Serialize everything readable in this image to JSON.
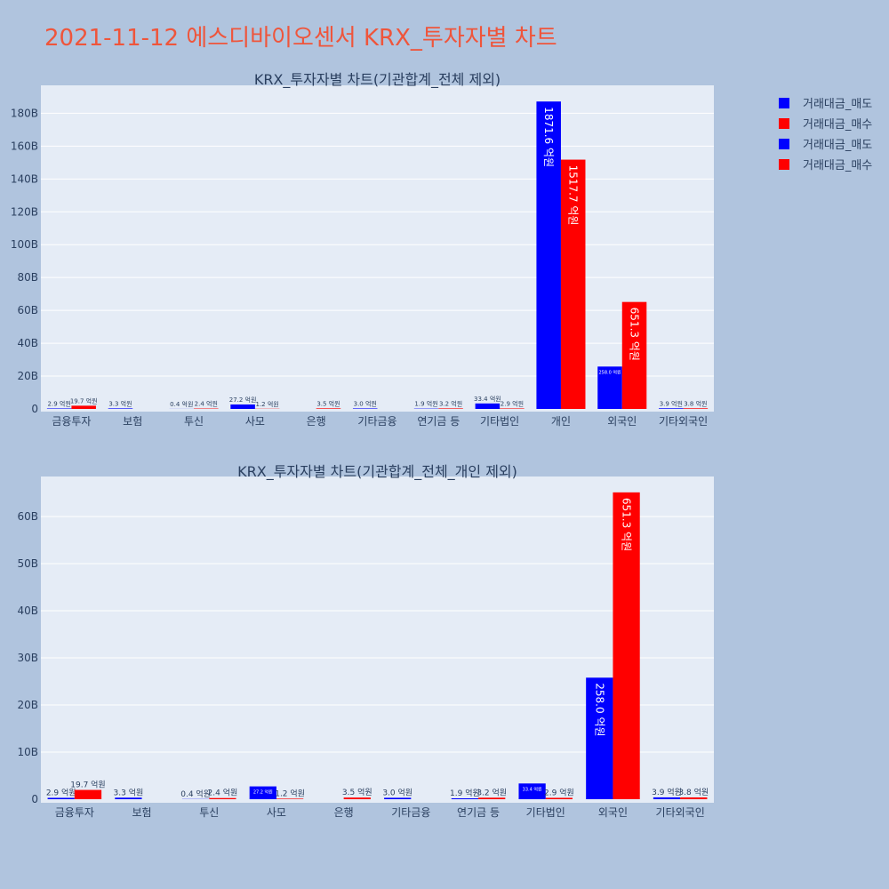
{
  "page": {
    "title": "2021-11-12 에스디바이오센서 KRX_투자자별 차트"
  },
  "legend": [
    {
      "label": "거래대금_매도",
      "color": "#0000ff"
    },
    {
      "label": "거래대금_매수",
      "color": "#ff0000"
    },
    {
      "label": "거래대금_매도",
      "color": "#0000ff"
    },
    {
      "label": "거래대금_매수",
      "color": "#ff0000"
    }
  ],
  "chart_data": [
    {
      "type": "bar",
      "title": "KRX_투자자별 차트(기관합계_전체 제외)",
      "categories": [
        "금융투자",
        "보험",
        "투신",
        "사모",
        "은행",
        "기타금융",
        "연기금 등",
        "기타법인",
        "개인",
        "외국인",
        "기타외국인"
      ],
      "series": [
        {
          "name": "거래대금_매도",
          "color": "#0000ff",
          "values": [
            0.29,
            0.33,
            0.04,
            2.72,
            0,
            0.3,
            0.19,
            3.34,
            187.16,
            25.8,
            0.39
          ],
          "labels": [
            "2.9 억원",
            "3.3 억원",
            "0.4 억원",
            "27.2 억원",
            "",
            "3.0 억원",
            "1.9 억원",
            "33.4 억원",
            "1871.6 억원",
            "258.0 억원",
            "3.9 억원"
          ]
        },
        {
          "name": "거래대금_매수",
          "color": "#ff0000",
          "values": [
            1.97,
            0,
            0.24,
            0.12,
            0.35,
            0,
            0.32,
            0.29,
            151.77,
            65.13,
            0.38
          ],
          "labels": [
            "19.7 억원",
            "",
            "2.4 억원",
            "1.2 억원",
            "3.5 억원",
            "",
            "3.2 억원",
            "2.9 억원",
            "1517.7 억원",
            "651.3 억원",
            "3.8 억원"
          ]
        }
      ],
      "ylim": [
        0,
        197
      ],
      "yticks": [
        0,
        20,
        40,
        60,
        80,
        100,
        120,
        140,
        160,
        180
      ],
      "ytick_labels": [
        "0",
        "20B",
        "40B",
        "60B",
        "80B",
        "100B",
        "120B",
        "140B",
        "160B",
        "180B"
      ]
    },
    {
      "type": "bar",
      "title": "KRX_투자자별 차트(기관합계_전체_개인 제외)",
      "categories": [
        "금융투자",
        "보험",
        "투신",
        "사모",
        "은행",
        "기타금융",
        "연기금 등",
        "기타법인",
        "외국인",
        "기타외국인"
      ],
      "series": [
        {
          "name": "거래대금_매도",
          "color": "#0000ff",
          "values": [
            0.29,
            0.33,
            0.04,
            2.72,
            0,
            0.3,
            0.19,
            3.34,
            25.8,
            0.39
          ],
          "labels": [
            "2.9 억원",
            "3.3 억원",
            "0.4 억원",
            "27.2 억원",
            "",
            "3.0 억원",
            "1.9 억원",
            "33.4 억원",
            "258.0 억원",
            "3.9 억원"
          ]
        },
        {
          "name": "거래대금_매수",
          "color": "#ff0000",
          "values": [
            1.97,
            0,
            0.24,
            0.12,
            0.35,
            0,
            0.32,
            0.29,
            65.13,
            0.38
          ],
          "labels": [
            "19.7 억원",
            "",
            "2.4 억원",
            "1.2 억원",
            "3.5 억원",
            "",
            "3.2 억원",
            "2.9 억원",
            "651.3 억원",
            "3.8 억원"
          ]
        }
      ],
      "ylim": [
        0,
        68.5
      ],
      "yticks": [
        0,
        10,
        20,
        30,
        40,
        50,
        60
      ],
      "ytick_labels": [
        "0",
        "10B",
        "20B",
        "30B",
        "40B",
        "50B",
        "60B"
      ]
    }
  ]
}
